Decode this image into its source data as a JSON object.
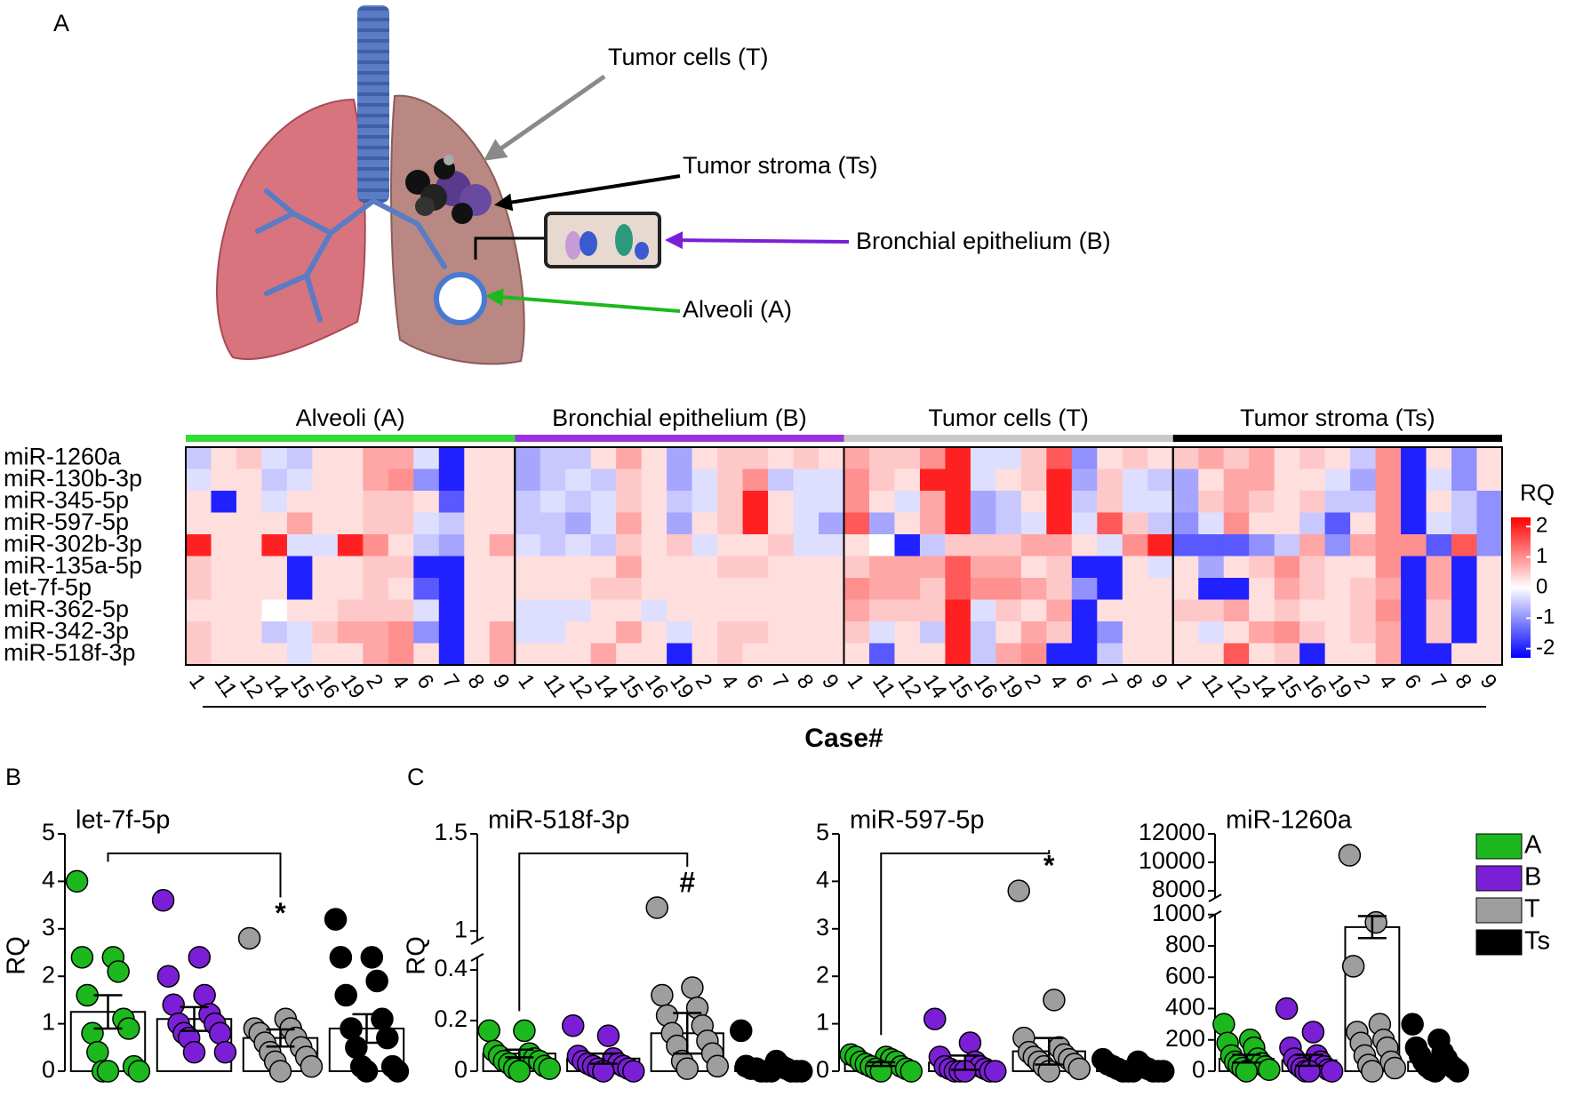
{
  "panels": {
    "a": "A",
    "b": "B",
    "c": "C"
  },
  "illustration": {
    "labels": [
      "Tumor cells (T)",
      "Tumor stroma (Ts)",
      "Bronchial epithelium (B)",
      "Alveoli (A)"
    ]
  },
  "groups": [
    {
      "name": "A",
      "color": "#1db81d"
    },
    {
      "name": "B",
      "color": "#7a1fd6"
    },
    {
      "name": "T",
      "color": "#9e9e9e"
    },
    {
      "name": "Ts",
      "color": "#000000"
    }
  ],
  "chart_data": [
    {
      "type": "heatmap",
      "groups": [
        {
          "name": "Alveoli (A)",
          "color": "#33dd33"
        },
        {
          "name": "Bronchial epithelium (B)",
          "color": "#9933dd"
        },
        {
          "name": "Tumor cells (T)",
          "color": "#c8c8c8"
        },
        {
          "name": "Tumor stroma (Ts)",
          "color": "#000000"
        }
      ],
      "categories": [
        "1",
        "11",
        "12",
        "14",
        "15",
        "16",
        "19",
        "2",
        "4",
        "6",
        "7",
        "8",
        "9"
      ],
      "rows": [
        "miR-1260a",
        "miR-130b-3p",
        "miR-345-5p",
        "miR-597-5p",
        "miR-302b-3p",
        "miR-135a-5p",
        "let-7f-5p",
        "miR-362-5p",
        "miR-342-3p",
        "miR-518f-3p"
      ],
      "values": [
        [
          -0.5,
          0.3,
          0.5,
          -0.3,
          -0.5,
          0.3,
          0.3,
          0.8,
          0.8,
          -0.3,
          -2,
          0.3,
          0.3,
          -0.8,
          -0.5,
          -0.5,
          0.3,
          0.8,
          0.3,
          -0.8,
          0.3,
          0.5,
          0.5,
          0.3,
          0.5,
          0.3,
          0.8,
          0.5,
          0.5,
          1,
          2,
          -0.3,
          -0.3,
          0.5,
          1.5,
          -1,
          0.3,
          0.5,
          0.3,
          0.5,
          0.8,
          0.5,
          0.8,
          0.3,
          0.5,
          0.3,
          -0.5,
          1,
          -2,
          0.3,
          -1,
          0.3
        ],
        [
          -0.3,
          0.3,
          0.3,
          -0.5,
          -0.3,
          0.3,
          0.3,
          0.8,
          1,
          -1,
          -2,
          0.3,
          0.3,
          -0.8,
          -0.5,
          -0.3,
          -0.5,
          0.5,
          0.3,
          -0.8,
          -0.3,
          0.5,
          1,
          -0.5,
          -0.3,
          -0.3,
          1,
          0.5,
          0.3,
          2,
          2,
          -0.3,
          0.3,
          0.5,
          2,
          -0.8,
          0.5,
          -0.3,
          -0.5,
          -0.8,
          0.3,
          0.8,
          0.8,
          0.3,
          0.3,
          -0.3,
          -0.8,
          1,
          -2,
          -0.3,
          -1,
          0.3
        ],
        [
          0.3,
          -2,
          0.3,
          -0.3,
          0.3,
          0.3,
          0.3,
          0.5,
          0.5,
          0.3,
          -1.5,
          0.3,
          0.3,
          -0.5,
          -0.3,
          -0.5,
          -0.3,
          0.5,
          0.3,
          -0.5,
          -0.3,
          0.5,
          2,
          0.3,
          -0.3,
          -0.3,
          1,
          0.3,
          -0.3,
          0.8,
          2,
          -0.8,
          -0.5,
          0.3,
          2,
          -0.5,
          0.5,
          -0.3,
          -0.3,
          -0.8,
          0.5,
          0.8,
          0.5,
          0.3,
          0.5,
          -0.5,
          -0.5,
          1,
          -2,
          0.3,
          -0.5,
          -1
        ],
        [
          0.3,
          0.3,
          0.3,
          0.3,
          0.8,
          0.3,
          0.3,
          0.5,
          0.5,
          -0.3,
          -0.5,
          0.3,
          0.3,
          -0.5,
          -0.5,
          -0.8,
          -0.3,
          0.8,
          0.3,
          -0.8,
          0.3,
          0.5,
          2,
          0.3,
          -0.3,
          -0.8,
          1.5,
          -0.8,
          0.3,
          0.8,
          2,
          -0.8,
          -0.5,
          -0.3,
          2,
          -0.3,
          1.5,
          0.5,
          -0.5,
          -1,
          -0.3,
          1,
          0.3,
          0.3,
          -0.5,
          -1.5,
          0.3,
          1,
          -2,
          -0.3,
          -0.5,
          -1
        ],
        [
          2,
          0.3,
          0.3,
          2,
          -0.3,
          -0.3,
          2,
          1,
          0.3,
          -0.5,
          -0.8,
          0.3,
          0.8,
          -0.3,
          -0.5,
          -0.3,
          -0.5,
          0.5,
          0.3,
          0.5,
          -0.3,
          0.3,
          0.3,
          0.5,
          -0.3,
          -0.3,
          0.3,
          0,
          -2,
          -0.5,
          0.5,
          0.5,
          0.5,
          0.8,
          0.8,
          0.3,
          -0.3,
          1,
          2,
          -1.5,
          -1.5,
          -1.5,
          -1,
          -0.5,
          0.8,
          -1,
          0.8,
          1,
          1,
          -1.5,
          1.5,
          -1
        ],
        [
          0.5,
          0.3,
          0.3,
          0.3,
          -2,
          0.3,
          0.3,
          0.5,
          0.5,
          -2,
          -2,
          0.3,
          0.3,
          0.3,
          0.3,
          0.3,
          0.3,
          0.8,
          0.3,
          0.3,
          0.3,
          0.5,
          0.5,
          0.3,
          0.3,
          0.3,
          0.5,
          0.8,
          0.8,
          0.8,
          1.5,
          0.8,
          0.8,
          0.3,
          0.5,
          -2,
          -2,
          0.3,
          -0.3,
          0.3,
          -0.8,
          0.3,
          0.5,
          1,
          0.5,
          0.3,
          0.3,
          1,
          -2,
          0.8,
          -2,
          0.3
        ],
        [
          0.5,
          0.3,
          0.3,
          0.3,
          -2,
          0.3,
          0.3,
          0.5,
          0.3,
          -1.5,
          -2,
          0.3,
          0.3,
          0.3,
          0.3,
          0.3,
          0.5,
          0.5,
          0.3,
          0.3,
          0.3,
          0.3,
          0.3,
          0.3,
          0.3,
          0.3,
          1,
          0.8,
          0.8,
          0.5,
          1.5,
          1,
          1,
          0.8,
          0.5,
          -1,
          -2,
          0.3,
          0.3,
          0.3,
          -2,
          -2,
          0.3,
          0.8,
          0.5,
          0.3,
          0.5,
          0.8,
          -2,
          0.8,
          -2,
          0.3
        ],
        [
          0.3,
          0.3,
          0.3,
          0,
          0.3,
          0.3,
          0.5,
          0.5,
          0.5,
          -0.3,
          -2,
          0.3,
          0.3,
          -0.3,
          -0.3,
          -0.3,
          0.3,
          0.3,
          -0.3,
          0.3,
          0.3,
          0.3,
          0.3,
          0.3,
          0.3,
          0.3,
          0.8,
          0.5,
          0.5,
          0.5,
          2,
          -0.3,
          0.5,
          0.3,
          0.8,
          -2,
          0.3,
          0.3,
          0.3,
          0.5,
          0.5,
          0.8,
          0.3,
          0.5,
          0.3,
          0.3,
          0.5,
          1,
          -2,
          0.5,
          -2,
          0.3
        ],
        [
          0.5,
          0.3,
          0.3,
          -0.5,
          -0.3,
          0.5,
          0.8,
          0.8,
          1,
          -1,
          -2,
          0.3,
          0.8,
          -0.3,
          -0.3,
          0.3,
          0.3,
          0.8,
          0.3,
          -0.3,
          0.3,
          0.5,
          0.5,
          0.3,
          0.3,
          0.3,
          0.5,
          -0.3,
          0.3,
          -0.5,
          2,
          -0.5,
          0.3,
          0.8,
          0.5,
          -2,
          -1,
          0.3,
          0.3,
          0.3,
          -0.3,
          0.3,
          0.8,
          1,
          0.5,
          0.3,
          0.5,
          0.8,
          -2,
          0.5,
          -2,
          0.3
        ],
        [
          0.5,
          0.3,
          0.3,
          0.3,
          -0.3,
          0.3,
          0.3,
          0.8,
          1,
          0.3,
          -2,
          0.3,
          0.8,
          0.3,
          0.3,
          0.3,
          0.8,
          0.3,
          0.3,
          -2,
          0.3,
          0.5,
          0.3,
          0.3,
          0.3,
          0.3,
          0.3,
          -1.5,
          0.3,
          0.3,
          2,
          -0.5,
          0.8,
          1,
          -2,
          -2,
          -0.5,
          0.3,
          0.3,
          0.3,
          0.3,
          1.5,
          0.3,
          0.5,
          -2,
          0.3,
          0.3,
          0.8,
          -2,
          -2,
          0.3,
          0.3
        ]
      ],
      "xlabel": "Case#",
      "colorbar_title": "RQ",
      "zlim": [
        -2.3,
        2.3
      ],
      "zticks": [
        2,
        1,
        0,
        -1,
        -2
      ],
      "colors": [
        "#0000ff",
        "#ffffff",
        "#ff0000"
      ]
    },
    {
      "type": "dotbar",
      "title": "let-7f-5p",
      "ylabel": "RQ",
      "ylim": [
        0,
        5
      ],
      "yticks": [
        0,
        1,
        2,
        3,
        4,
        5
      ],
      "series": [
        {
          "values": [
            4.0,
            2.4,
            2.4,
            2.1,
            1.6,
            1.1,
            0.8,
            0.9,
            0.4,
            0.1,
            0,
            0,
            0
          ],
          "mean": 1.25,
          "sem": 0.35
        },
        {
          "values": [
            3.6,
            2.4,
            2.0,
            1.6,
            1.4,
            1.2,
            1.0,
            1.0,
            0.8,
            0.8,
            0.7,
            0.4,
            0.4
          ],
          "mean": 1.1,
          "sem": 0.25
        },
        {
          "values": [
            2.8,
            1.1,
            0.9,
            0.9,
            0.8,
            0.7,
            0.6,
            0.5,
            0.4,
            0.3,
            0.2,
            0.1,
            0
          ],
          "mean": 0.7,
          "sem": 0.18
        },
        {
          "values": [
            3.2,
            2.4,
            2.4,
            1.9,
            1.6,
            1.1,
            0.9,
            0.7,
            0.5,
            0.1,
            0.1,
            0,
            0
          ],
          "mean": 0.9,
          "sem": 0.3
        }
      ],
      "annotation": {
        "from": 0,
        "to": 2,
        "label": "*"
      }
    },
    {
      "type": "dotbar",
      "title": "miR-518f-3p",
      "ylabel": "RQ",
      "segments": [
        {
          "ylim": [
            0,
            0.45
          ],
          "yticks": [
            0,
            0.2,
            0.4
          ]
        },
        {
          "ylim": [
            0.95,
            1.5
          ],
          "yticks": [
            1,
            1.5
          ]
        }
      ],
      "series": [
        {
          "values": [
            0.16,
            0.16,
            0.08,
            0.07,
            0.06,
            0.05,
            0.04,
            0.04,
            0.03,
            0.02,
            0.01,
            0.01,
            0
          ],
          "mean": 0.07,
          "sem": 0.015
        },
        {
          "values": [
            0.18,
            0.14,
            0.06,
            0.05,
            0.04,
            0.03,
            0.03,
            0.02,
            0.02,
            0.01,
            0.01,
            0,
            0
          ],
          "mean": 0.05,
          "sem": 0.02
        },
        {
          "values": [
            1.12,
            0.33,
            0.3,
            0.25,
            0.22,
            0.18,
            0.15,
            0.12,
            0.1,
            0.07,
            0.04,
            0.02,
            0.01
          ],
          "mean": 0.15,
          "sem": 0.08
        },
        {
          "values": [
            0.16,
            0.04,
            0.02,
            0.02,
            0.01,
            0.01,
            0.01,
            0,
            0,
            0,
            0,
            0,
            0
          ],
          "mean": 0.02,
          "sem": 0.01
        }
      ],
      "annotation": {
        "from": 0,
        "to": 2,
        "label": "#"
      }
    },
    {
      "type": "dotbar",
      "title": "miR-597-5p",
      "ylim": [
        0,
        5
      ],
      "yticks": [
        0,
        1,
        2,
        3,
        4,
        5
      ],
      "series": [
        {
          "values": [
            0.35,
            0.3,
            0.3,
            0.25,
            0.2,
            0.2,
            0.15,
            0.1,
            0.1,
            0.05,
            0.05,
            0,
            0
          ],
          "mean": 0.15,
          "sem": 0.04
        },
        {
          "values": [
            1.1,
            0.6,
            0.3,
            0.2,
            0.1,
            0.1,
            0.05,
            0.05,
            0,
            0,
            0,
            0,
            0
          ],
          "mean": 0.18,
          "sem": 0.15
        },
        {
          "values": [
            3.8,
            1.5,
            0.7,
            0.5,
            0.4,
            0.35,
            0.3,
            0.25,
            0.2,
            0.15,
            0.1,
            0.05,
            0
          ],
          "mean": 0.42,
          "sem": 0.28
        },
        {
          "values": [
            0.25,
            0.2,
            0.15,
            0.1,
            0.1,
            0.05,
            0.05,
            0,
            0,
            0,
            0,
            0,
            0
          ],
          "mean": 0.08,
          "sem": 0.03
        }
      ],
      "annotation": {
        "from": 0,
        "to": 2,
        "label": "*"
      }
    },
    {
      "type": "dotbar",
      "title": "miR-1260a",
      "segments": [
        {
          "ylim": [
            0,
            1000
          ],
          "yticks": [
            0,
            200,
            400,
            600,
            800,
            1000
          ]
        },
        {
          "ylim": [
            7500,
            12000
          ],
          "yticks": [
            8000,
            10000,
            12000
          ]
        }
      ],
      "series": [
        {
          "values": [
            300,
            200,
            180,
            150,
            100,
            80,
            60,
            50,
            40,
            30,
            20,
            10,
            0
          ],
          "mean": 80,
          "sem": 25
        },
        {
          "values": [
            400,
            250,
            150,
            100,
            80,
            60,
            40,
            30,
            20,
            10,
            0,
            0,
            0
          ],
          "mean": 70,
          "sem": 35
        },
        {
          "values": [
            10500,
            950,
            670,
            300,
            250,
            200,
            180,
            150,
            100,
            60,
            40,
            20,
            0
          ],
          "mean": 920,
          "sem": 70
        },
        {
          "values": [
            300,
            200,
            150,
            120,
            100,
            80,
            60,
            40,
            30,
            20,
            10,
            0,
            0
          ],
          "mean": 60,
          "sem": 25
        }
      ],
      "legend": true
    }
  ]
}
